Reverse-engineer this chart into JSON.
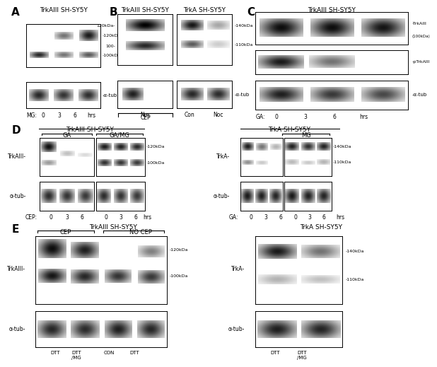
{
  "fig_width": 6.0,
  "fig_height": 6.83,
  "bg_color": "#ffffff",
  "panels": {
    "A": {
      "label": "A",
      "title": "TrkAIII SH-SY5Y",
      "xlabel": "MG:",
      "xticks": [
        "0",
        "3",
        "6",
        "hrs"
      ],
      "marker1": "-120kDa",
      "marker2": "-100kDa",
      "atub": "-α-tub"
    },
    "B": {
      "label": "B",
      "title1": "TrkAIII SH-SY5Y",
      "title2": "TrkA SH-SY5Y",
      "marker1l": "120kDa-",
      "marker2l": "100-",
      "marker1r": "-140kDa",
      "marker2r": "-110kDa",
      "atub": "-α-tub",
      "cep": "CEP",
      "noc": "Noc",
      "con": "Con"
    },
    "C": {
      "label": "C",
      "title": "TrkAIII SH-SY5Y",
      "xlabel": "GA:",
      "xticks": [
        "0",
        "3",
        "6",
        "hrs"
      ],
      "blot1": "-TrkAIII",
      "blot1b": "(100kDa)",
      "blot2": "-pTrkAIII",
      "atub": "-α-tub"
    },
    "D": {
      "label": "D",
      "title_l": "TrkAIII SH-SY5Y",
      "title_r": "TrkA SH-SY5Y",
      "sub_ga": "GA",
      "sub_gamg": "GA/MG",
      "sub_mg": "MG",
      "lbl_l": "TrkAIII-",
      "lbl_r": "TrkA-",
      "atub": "α-tub-",
      "m1": "-120kDa",
      "m2": "-100kDa",
      "m3": "-140kDa",
      "m4": "-110kDa",
      "xl": "CEP:",
      "xr": "GA:",
      "hrs": "hrs"
    },
    "E": {
      "label": "E",
      "title_l": "TrkAIII SH-SY5Y",
      "title_r": "TrkA SH-SY5Y",
      "cep": "CEP",
      "nocep": "NO CEP",
      "lbl_l": "TrkAIII-",
      "lbl_r": "TrkA-",
      "atub": "α-tub-",
      "m1": "-120kDa",
      "m2": "-100kDa",
      "m3": "-140kDa",
      "m4": "-110kDa",
      "xt_l": [
        "DTT",
        "DTT\n/MG",
        "CON",
        "DTT"
      ],
      "xt_r": [
        "DTT",
        "DTT\n/MG"
      ]
    }
  }
}
